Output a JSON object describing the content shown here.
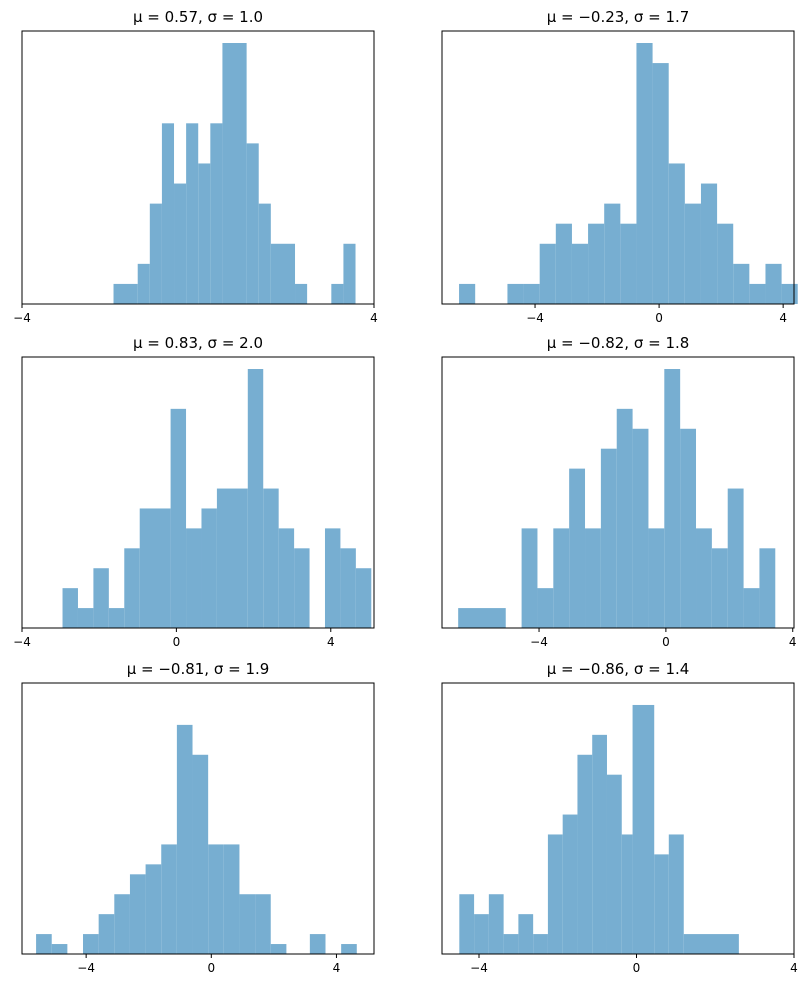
{
  "chart_data": [
    {
      "type": "bar",
      "title": "μ = 0.57,    σ = 1.0",
      "xlim": [
        -4,
        4
      ],
      "ylim": [
        0,
        13
      ],
      "xticks": [
        -4,
        4
      ],
      "xtick_labels": [
        "−4",
        "4"
      ],
      "bin_width": 0.275,
      "color": "#77aed1",
      "bins": [
        {
          "x0": -1.92,
          "x1": -1.37,
          "count": 1
        },
        {
          "x0": -1.37,
          "x1": -1.095,
          "count": 2
        },
        {
          "x0": -1.095,
          "x1": -0.82,
          "count": 5
        },
        {
          "x0": -0.82,
          "x1": -0.545,
          "count": 9
        },
        {
          "x0": -0.545,
          "x1": -0.27,
          "count": 6
        },
        {
          "x0": -0.27,
          "x1": 0.005,
          "count": 9
        },
        {
          "x0": 0.005,
          "x1": 0.28,
          "count": 7
        },
        {
          "x0": 0.28,
          "x1": 0.555,
          "count": 9
        },
        {
          "x0": 0.555,
          "x1": 1.105,
          "count": 13
        },
        {
          "x0": 1.105,
          "x1": 1.38,
          "count": 8
        },
        {
          "x0": 1.38,
          "x1": 1.655,
          "count": 5
        },
        {
          "x0": 1.655,
          "x1": 2.205,
          "count": 3
        },
        {
          "x0": 2.205,
          "x1": 2.48,
          "count": 1
        },
        {
          "x0": 3.03,
          "x1": 3.305,
          "count": 1
        },
        {
          "x0": 3.305,
          "x1": 3.58,
          "count": 3
        }
      ]
    },
    {
      "type": "bar",
      "title": "μ = −0.23,    σ = 1.7",
      "xlim": [
        -7,
        4.35
      ],
      "ylim": [
        0,
        13
      ],
      "xticks": [
        -4,
        0,
        4
      ],
      "xtick_labels": [
        "−4",
        "0",
        "4"
      ],
      "bin_width": 0.52,
      "color": "#77aed1",
      "bins": [
        {
          "x0": -6.45,
          "x1": -5.93,
          "count": 1
        },
        {
          "x0": -4.89,
          "x1": -4.37,
          "count": 1
        },
        {
          "x0": -4.37,
          "x1": -3.85,
          "count": 1
        },
        {
          "x0": -3.85,
          "x1": -3.33,
          "count": 3
        },
        {
          "x0": -3.33,
          "x1": -2.81,
          "count": 4
        },
        {
          "x0": -2.81,
          "x1": -2.29,
          "count": 3
        },
        {
          "x0": -2.29,
          "x1": -1.77,
          "count": 4
        },
        {
          "x0": -1.77,
          "x1": -1.25,
          "count": 5
        },
        {
          "x0": -1.25,
          "x1": -0.73,
          "count": 4
        },
        {
          "x0": -0.73,
          "x1": -0.21,
          "count": 13
        },
        {
          "x0": -0.21,
          "x1": 0.31,
          "count": 12
        },
        {
          "x0": 0.31,
          "x1": 0.83,
          "count": 7
        },
        {
          "x0": 0.83,
          "x1": 1.35,
          "count": 5
        },
        {
          "x0": 1.35,
          "x1": 1.87,
          "count": 6
        },
        {
          "x0": 1.87,
          "x1": 2.39,
          "count": 4
        },
        {
          "x0": 2.39,
          "x1": 2.91,
          "count": 2
        },
        {
          "x0": 2.91,
          "x1": 3.43,
          "count": 1
        },
        {
          "x0": 3.43,
          "x1": 3.95,
          "count": 2
        },
        {
          "x0": 3.95,
          "x1": 4.47,
          "count": 1
        }
      ]
    },
    {
      "type": "bar",
      "title": "μ = 0.83,    σ = 2.0",
      "xlim": [
        -4,
        5.12
      ],
      "ylim": [
        0,
        13
      ],
      "xticks": [
        -4,
        0,
        4
      ],
      "xtick_labels": [
        "−4",
        "0",
        "4"
      ],
      "bin_width": 0.4,
      "color": "#77aed1",
      "bins": [
        {
          "x0": -2.95,
          "x1": -2.55,
          "count": 2
        },
        {
          "x0": -2.55,
          "x1": -2.15,
          "count": 1
        },
        {
          "x0": -2.15,
          "x1": -1.75,
          "count": 3
        },
        {
          "x0": -1.75,
          "x1": -1.35,
          "count": 1
        },
        {
          "x0": -1.35,
          "x1": -0.95,
          "count": 4
        },
        {
          "x0": -0.95,
          "x1": -0.15,
          "count": 6
        },
        {
          "x0": -0.15,
          "x1": 0.25,
          "count": 11
        },
        {
          "x0": 0.25,
          "x1": 0.65,
          "count": 5
        },
        {
          "x0": 0.65,
          "x1": 1.05,
          "count": 6
        },
        {
          "x0": 1.05,
          "x1": 1.85,
          "count": 7
        },
        {
          "x0": 1.85,
          "x1": 2.25,
          "count": 13
        },
        {
          "x0": 2.25,
          "x1": 2.65,
          "count": 7
        },
        {
          "x0": 2.65,
          "x1": 3.05,
          "count": 5
        },
        {
          "x0": 3.05,
          "x1": 3.45,
          "count": 4
        },
        {
          "x0": 3.85,
          "x1": 4.25,
          "count": 5
        },
        {
          "x0": 4.25,
          "x1": 4.65,
          "count": 4
        },
        {
          "x0": 4.65,
          "x1": 5.05,
          "count": 3
        }
      ]
    },
    {
      "type": "bar",
      "title": "μ = −0.82,    σ = 1.8",
      "xlim": [
        -7.06,
        4.04
      ],
      "ylim": [
        0,
        13
      ],
      "xticks": [
        -4,
        0,
        4
      ],
      "xtick_labels": [
        "−4",
        "0",
        "4"
      ],
      "bin_width": 0.5,
      "color": "#77aed1",
      "bins": [
        {
          "x0": -6.55,
          "x1": -5.05,
          "count": 1
        },
        {
          "x0": -4.55,
          "x1": -4.05,
          "count": 5
        },
        {
          "x0": -4.05,
          "x1": -3.55,
          "count": 2
        },
        {
          "x0": -3.55,
          "x1": -3.05,
          "count": 5
        },
        {
          "x0": -3.05,
          "x1": -2.55,
          "count": 8
        },
        {
          "x0": -2.55,
          "x1": -2.05,
          "count": 5
        },
        {
          "x0": -2.05,
          "x1": -1.55,
          "count": 9
        },
        {
          "x0": -1.55,
          "x1": -1.05,
          "count": 11
        },
        {
          "x0": -1.05,
          "x1": -0.55,
          "count": 10
        },
        {
          "x0": -0.55,
          "x1": -0.05,
          "count": 5
        },
        {
          "x0": -0.05,
          "x1": 0.45,
          "count": 13
        },
        {
          "x0": 0.45,
          "x1": 0.95,
          "count": 10
        },
        {
          "x0": 0.95,
          "x1": 1.45,
          "count": 5
        },
        {
          "x0": 1.45,
          "x1": 1.95,
          "count": 4
        },
        {
          "x0": 1.95,
          "x1": 2.45,
          "count": 7
        },
        {
          "x0": 2.45,
          "x1": 2.95,
          "count": 2
        },
        {
          "x0": 2.95,
          "x1": 3.45,
          "count": 4
        }
      ]
    },
    {
      "type": "bar",
      "title": "μ = −0.81,    σ = 1.9",
      "xlim": [
        -6.05,
        5.2
      ],
      "ylim": [
        0,
        13
      ],
      "xticks": [
        -4,
        0,
        4
      ],
      "xtick_labels": [
        "−4",
        "0",
        "4"
      ],
      "bin_width": 0.5,
      "color": "#77aed1",
      "bins": [
        {
          "x0": -5.6,
          "x1": -5.1,
          "count": 1
        },
        {
          "x0": -5.1,
          "x1": -4.6,
          "count": 0.5
        },
        {
          "x0": -4.1,
          "x1": -3.6,
          "count": 1
        },
        {
          "x0": -3.6,
          "x1": -3.1,
          "count": 2
        },
        {
          "x0": -3.1,
          "x1": -2.6,
          "count": 3
        },
        {
          "x0": -2.6,
          "x1": -2.1,
          "count": 4
        },
        {
          "x0": -2.1,
          "x1": -1.6,
          "count": 4.5
        },
        {
          "x0": -1.6,
          "x1": -1.1,
          "count": 5.5
        },
        {
          "x0": -1.1,
          "x1": -0.6,
          "count": 11.5
        },
        {
          "x0": -0.6,
          "x1": -0.1,
          "count": 10
        },
        {
          "x0": -0.1,
          "x1": 0.4,
          "count": 5.5
        },
        {
          "x0": 0.4,
          "x1": 0.9,
          "count": 5.5
        },
        {
          "x0": 0.9,
          "x1": 1.4,
          "count": 3
        },
        {
          "x0": 1.4,
          "x1": 1.9,
          "count": 3
        },
        {
          "x0": 1.9,
          "x1": 2.4,
          "count": 0.5
        },
        {
          "x0": 3.15,
          "x1": 3.65,
          "count": 1
        },
        {
          "x0": 4.15,
          "x1": 4.65,
          "count": 0.5
        }
      ]
    },
    {
      "type": "bar",
      "title": "μ = −0.86,    σ = 1.4",
      "xlim": [
        -4.94,
        4.0
      ],
      "ylim": [
        0,
        13
      ],
      "xticks": [
        -4,
        0,
        4
      ],
      "xtick_labels": [
        "−4",
        "0",
        "4"
      ],
      "bin_width": 0.375,
      "color": "#77aed1",
      "bins": [
        {
          "x0": -4.5,
          "x1": -4.125,
          "count": 3
        },
        {
          "x0": -4.125,
          "x1": -3.75,
          "count": 2
        },
        {
          "x0": -3.75,
          "x1": -3.375,
          "count": 3
        },
        {
          "x0": -3.375,
          "x1": -3.0,
          "count": 1
        },
        {
          "x0": -3.0,
          "x1": -2.625,
          "count": 2
        },
        {
          "x0": -2.625,
          "x1": -2.25,
          "count": 1
        },
        {
          "x0": -2.25,
          "x1": -1.875,
          "count": 6
        },
        {
          "x0": -1.875,
          "x1": -1.5,
          "count": 7
        },
        {
          "x0": -1.5,
          "x1": -1.125,
          "count": 10
        },
        {
          "x0": -1.125,
          "x1": -0.75,
          "count": 11
        },
        {
          "x0": -0.75,
          "x1": -0.375,
          "count": 9
        },
        {
          "x0": -0.375,
          "x1": -0.1,
          "count": 6
        },
        {
          "x0": -0.1,
          "x1": 0.45,
          "count": 12.5
        },
        {
          "x0": 0.45,
          "x1": 0.82,
          "count": 5
        },
        {
          "x0": 0.82,
          "x1": 1.2,
          "count": 6
        },
        {
          "x0": 1.2,
          "x1": 2.6,
          "count": 1
        }
      ]
    }
  ]
}
